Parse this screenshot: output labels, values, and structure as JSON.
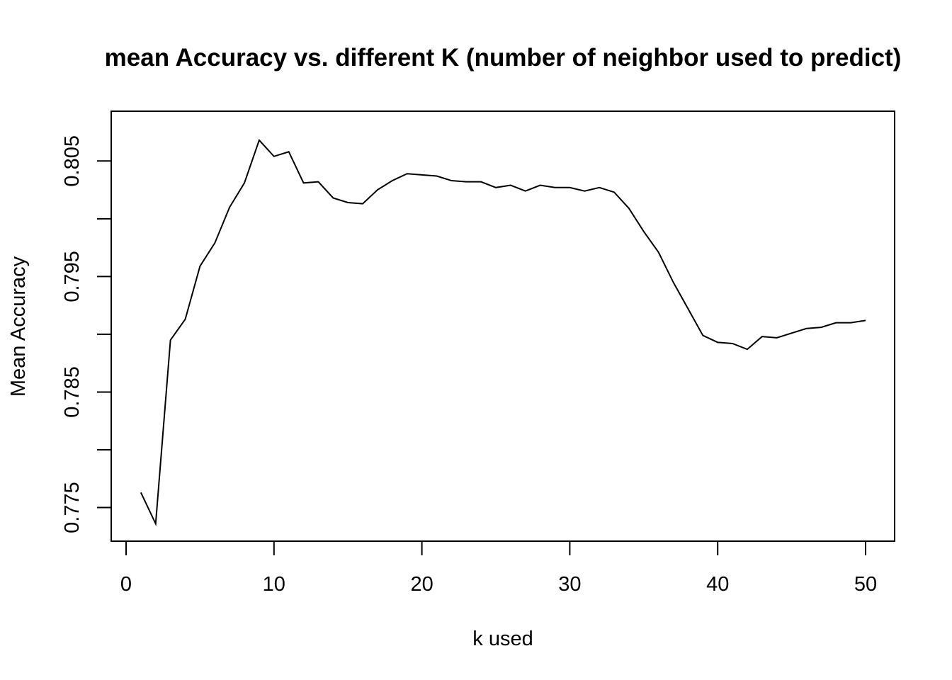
{
  "chart_data": {
    "type": "line",
    "title": "mean Accuracy vs. different K (number of neighbor used to predict)",
    "xlabel": "k used",
    "ylabel": "Mean Accuracy",
    "xlim": [
      0,
      50
    ],
    "ylim": [
      0.7735,
      0.8079
    ],
    "x_ticks": [
      0,
      10,
      20,
      30,
      40,
      50
    ],
    "x_tick_labels": [
      "0",
      "10",
      "20",
      "30",
      "40",
      "50"
    ],
    "y_ticks": [
      0.775,
      0.78,
      0.785,
      0.79,
      0.795,
      0.8,
      0.805
    ],
    "y_tick_labels": [
      "0.775",
      "",
      "0.785",
      "",
      "0.795",
      "",
      "0.805"
    ],
    "grid": false,
    "legend": "none",
    "series": [
      {
        "x": [
          1,
          2,
          3,
          4,
          5,
          6,
          7,
          8,
          9,
          10,
          11,
          12,
          13,
          14,
          15,
          16,
          17,
          18,
          19,
          20,
          21,
          22,
          23,
          24,
          25,
          26,
          27,
          28,
          29,
          30,
          31,
          32,
          33,
          34,
          35,
          36,
          37,
          38,
          39,
          40,
          41,
          42,
          43,
          44,
          45,
          46,
          47,
          48,
          49,
          50
        ],
        "values": [
          0.7763,
          0.7736,
          0.7895,
          0.7913,
          0.7959,
          0.7979,
          0.801,
          0.8031,
          0.8068,
          0.8054,
          0.8058,
          0.8031,
          0.8032,
          0.8018,
          0.8014,
          0.8013,
          0.8025,
          0.8033,
          0.8039,
          0.8038,
          0.8037,
          0.8033,
          0.8032,
          0.8032,
          0.8027,
          0.8029,
          0.8024,
          0.8029,
          0.8027,
          0.8027,
          0.8024,
          0.8027,
          0.8023,
          0.8009,
          0.7989,
          0.7971,
          0.7945,
          0.7922,
          0.7899,
          0.7893,
          0.7892,
          0.7887,
          0.7898,
          0.7897,
          0.7901,
          0.7905,
          0.7906,
          0.791,
          0.791,
          0.7912
        ]
      }
    ]
  }
}
